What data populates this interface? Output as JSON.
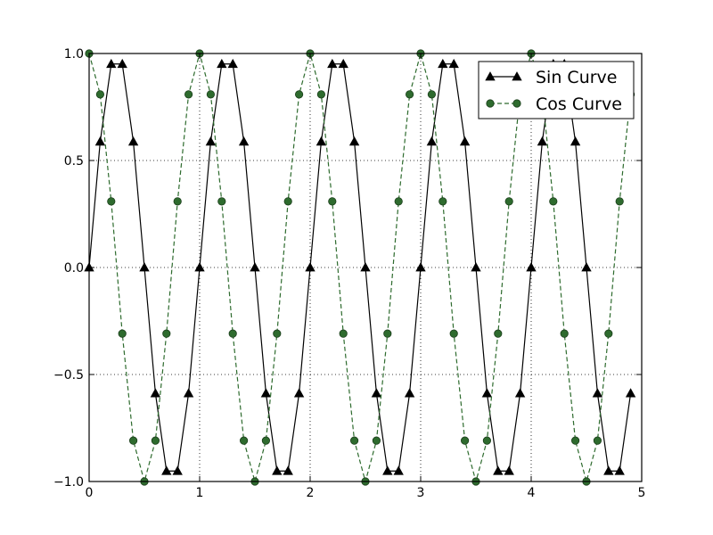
{
  "chart_data": {
    "type": "line",
    "title": "",
    "xlabel": "",
    "ylabel": "",
    "xlim": [
      0,
      5
    ],
    "ylim": [
      -1.0,
      1.0
    ],
    "xticks": [
      0,
      1,
      2,
      3,
      4,
      5
    ],
    "xtick_labels": [
      "0",
      "1",
      "2",
      "3",
      "4",
      "5"
    ],
    "yticks": [
      -1.0,
      -0.5,
      0.0,
      0.5,
      1.0
    ],
    "ytick_labels": [
      "−1.0",
      "−0.5",
      "0.0",
      "0.5",
      "1.0"
    ],
    "grid": true,
    "legend_position": "top-right",
    "x": [
      0.0,
      0.1,
      0.2,
      0.3,
      0.4,
      0.5,
      0.6,
      0.7,
      0.8,
      0.9,
      1.0,
      1.1,
      1.2,
      1.3,
      1.4,
      1.5,
      1.6,
      1.7,
      1.8,
      1.9,
      2.0,
      2.1,
      2.2,
      2.3,
      2.4,
      2.5,
      2.6,
      2.7,
      2.8,
      2.9,
      3.0,
      3.1,
      3.2,
      3.3,
      3.4,
      3.5,
      3.6,
      3.7,
      3.8,
      3.9,
      4.0,
      4.1,
      4.2,
      4.3,
      4.4,
      4.5,
      4.6,
      4.7,
      4.8,
      4.9
    ],
    "series": [
      {
        "name": "Sin Curve",
        "color": "#000000",
        "line_style": "solid",
        "marker": "triangle",
        "values": [
          0.0,
          0.588,
          0.951,
          0.951,
          0.588,
          0.0,
          -0.588,
          -0.951,
          -0.951,
          -0.588,
          0.0,
          0.588,
          0.951,
          0.951,
          0.588,
          0.0,
          -0.588,
          -0.951,
          -0.951,
          -0.588,
          0.0,
          0.588,
          0.951,
          0.951,
          0.588,
          0.0,
          -0.588,
          -0.951,
          -0.951,
          -0.588,
          0.0,
          0.588,
          0.951,
          0.951,
          0.588,
          0.0,
          -0.588,
          -0.951,
          -0.951,
          -0.588,
          0.0,
          0.588,
          0.951,
          0.951,
          0.588,
          0.0,
          -0.588,
          -0.951,
          -0.951,
          -0.588
        ]
      },
      {
        "name": "Cos Curve",
        "color": "#2e6b2e",
        "line_style": "dashed",
        "marker": "circle",
        "values": [
          1.0,
          0.809,
          0.309,
          -0.309,
          -0.809,
          -1.0,
          -0.809,
          -0.309,
          0.309,
          0.809,
          1.0,
          0.809,
          0.309,
          -0.309,
          -0.809,
          -1.0,
          -0.809,
          -0.309,
          0.309,
          0.809,
          1.0,
          0.809,
          0.309,
          -0.309,
          -0.809,
          -1.0,
          -0.809,
          -0.309,
          0.309,
          0.809,
          1.0,
          0.809,
          0.309,
          -0.309,
          -0.809,
          -1.0,
          -0.809,
          -0.309,
          0.309,
          0.809,
          1.0,
          0.809,
          0.309,
          -0.309,
          -0.809,
          -1.0,
          -0.809,
          -0.309,
          0.309,
          0.809
        ]
      }
    ]
  }
}
